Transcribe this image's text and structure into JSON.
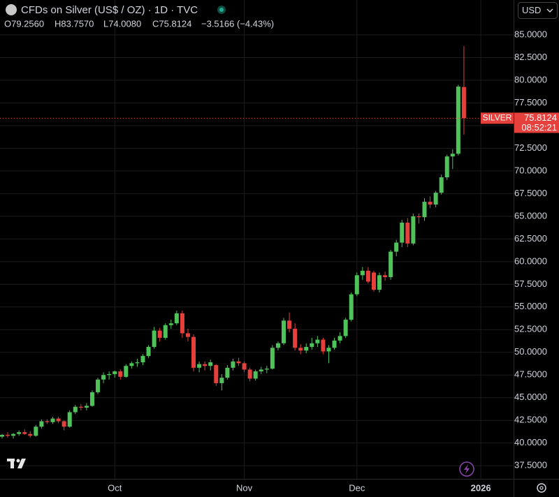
{
  "header": {
    "title": "CFDs on Silver (US$ / OZ) · 1D · TVC",
    "open": "O79.2560",
    "high": "H83.7570",
    "low": "L74.0080",
    "close": "C75.8124",
    "change": "−3.5166 (−4.43%)",
    "currency": "USD"
  },
  "chart_data": {
    "type": "candlestick",
    "up_color": "#4fc25a",
    "down_color": "#e5403b",
    "grid": true,
    "symbol_tag": "SILVER",
    "countdown": "08:52:21",
    "ylim": [
      36.05,
      88.85
    ],
    "yticks": [
      {
        "value": 37.5,
        "label": "37.5000"
      },
      {
        "value": 40,
        "label": "40.0000"
      },
      {
        "value": 42.5,
        "label": "42.5000"
      },
      {
        "value": 45,
        "label": "45.0000"
      },
      {
        "value": 47.5,
        "label": "47.5000"
      },
      {
        "value": 50,
        "label": "50.0000"
      },
      {
        "value": 52.5,
        "label": "52.5000"
      },
      {
        "value": 55,
        "label": "55.0000"
      },
      {
        "value": 57.5,
        "label": "57.5000"
      },
      {
        "value": 60,
        "label": "60.0000"
      },
      {
        "value": 62.5,
        "label": "62.5000"
      },
      {
        "value": 65,
        "label": "65.0000"
      },
      {
        "value": 67.5,
        "label": "67.5000"
      },
      {
        "value": 70,
        "label": "70.0000"
      },
      {
        "value": 72.5,
        "label": "72.5000"
      },
      {
        "value": 75,
        "label": "75.0000"
      },
      {
        "value": 77.5,
        "label": "77.5000"
      },
      {
        "value": 80,
        "label": "80.0000"
      },
      {
        "value": 82.5,
        "label": "82.5000"
      },
      {
        "value": 85,
        "label": "85.0000"
      }
    ],
    "categories": [
      null,
      null,
      null,
      null,
      null,
      null,
      null,
      null,
      null,
      null,
      null,
      null,
      null,
      null,
      null,
      null,
      null,
      null,
      null,
      null,
      "Oct",
      null,
      null,
      null,
      null,
      null,
      null,
      null,
      null,
      null,
      null,
      null,
      null,
      null,
      null,
      null,
      null,
      null,
      null,
      null,
      null,
      null,
      null,
      "Nov",
      null,
      null,
      null,
      null,
      null,
      null,
      null,
      null,
      null,
      null,
      null,
      null,
      null,
      null,
      null,
      null,
      null,
      null,
      null,
      "Dec",
      null,
      null,
      null,
      null,
      null,
      null,
      null,
      null,
      null,
      null,
      null,
      null,
      null,
      null,
      null,
      null,
      null,
      null,
      null,
      null,
      null,
      "2026"
    ],
    "open": [
      40.7,
      40.9,
      40.8,
      41.0,
      41.2,
      41.0,
      40.8,
      41.8,
      42.4,
      42.3,
      42.7,
      42.4,
      41.8,
      43.4,
      44.0,
      43.9,
      44.1,
      45.6,
      47.0,
      47.5,
      47.6,
      47.9,
      47.3,
      48.5,
      48.8,
      48.9,
      49.6,
      50.6,
      52.4,
      51.6,
      53.0,
      53.2,
      54.3,
      52.1,
      51.7,
      48.3,
      48.7,
      48.5,
      48.6,
      46.6,
      47.2,
      48.3,
      49.0,
      48.8,
      48.1,
      47.1,
      47.9,
      48.1,
      48.2,
      50.5,
      51.0,
      53.5,
      52.6,
      50.5,
      50.2,
      50.6,
      51.0,
      51.4,
      50.1,
      50.5,
      51.3,
      51.8,
      53.6,
      56.4,
      58.5,
      59.0,
      58.8,
      56.9,
      58.5,
      58.3,
      61.1,
      62.1,
      64.3,
      62.0,
      65.0,
      64.9,
      66.6,
      66.3,
      67.6,
      69.3,
      71.6,
      71.9,
      79.256,
      null,
      null,
      null
    ],
    "high": [
      41.0,
      41.2,
      41.1,
      41.4,
      41.5,
      41.3,
      42.0,
      42.6,
      42.6,
      42.9,
      42.9,
      42.5,
      43.6,
      44.2,
      44.3,
      44.4,
      45.8,
      47.2,
      47.8,
      47.9,
      48.0,
      48.1,
      48.7,
      49.0,
      49.3,
      49.8,
      50.8,
      52.8,
      52.7,
      53.2,
      53.6,
      54.6,
      54.6,
      52.6,
      52.0,
      49.0,
      49.0,
      49.2,
      48.7,
      47.6,
      48.6,
      49.3,
      49.4,
      49.0,
      48.3,
      48.1,
      48.4,
      48.5,
      50.8,
      51.2,
      53.8,
      54.4,
      53.2,
      50.9,
      51.0,
      51.6,
      51.8,
      51.6,
      50.8,
      51.6,
      52.2,
      53.8,
      56.6,
      58.8,
      59.4,
      59.4,
      59.0,
      58.8,
      58.9,
      61.3,
      62.4,
      64.6,
      64.8,
      65.3,
      65.3,
      67.0,
      67.2,
      67.8,
      69.6,
      71.8,
      72.4,
      79.5,
      83.757,
      null,
      null,
      null
    ],
    "low": [
      40.5,
      40.6,
      40.5,
      40.8,
      40.9,
      40.6,
      40.7,
      41.6,
      42.1,
      42.1,
      42.2,
      41.4,
      41.7,
      43.2,
      43.6,
      43.6,
      44.0,
      45.4,
      46.6,
      47.0,
      47.2,
      47.0,
      47.2,
      48.2,
      48.4,
      48.6,
      49.4,
      50.4,
      51.2,
      51.4,
      52.6,
      53.0,
      51.6,
      51.2,
      47.9,
      47.8,
      48.0,
      48.0,
      46.3,
      45.8,
      47.0,
      48.0,
      48.5,
      47.8,
      46.8,
      46.9,
      47.6,
      47.7,
      48.1,
      50.2,
      50.8,
      52.2,
      50.2,
      49.8,
      49.9,
      50.3,
      50.6,
      49.8,
      48.8,
      50.3,
      51.0,
      51.6,
      53.4,
      56.2,
      58.0,
      57.6,
      56.7,
      56.6,
      57.9,
      58.0,
      60.6,
      61.6,
      61.6,
      61.8,
      64.2,
      64.5,
      65.9,
      66.0,
      67.4,
      69.0,
      70.2,
      71.7,
      74.008,
      null,
      null,
      null
    ],
    "close": [
      40.9,
      40.8,
      41.0,
      41.2,
      41.0,
      40.8,
      41.8,
      42.4,
      42.3,
      42.7,
      42.4,
      41.8,
      43.4,
      44.0,
      43.9,
      44.1,
      45.6,
      47.0,
      47.5,
      47.6,
      47.9,
      47.3,
      48.5,
      48.8,
      48.9,
      49.6,
      50.6,
      52.4,
      51.6,
      53.0,
      53.2,
      54.3,
      52.1,
      51.7,
      48.3,
      48.7,
      48.5,
      48.9,
      46.6,
      47.2,
      48.3,
      49.0,
      48.8,
      48.1,
      47.1,
      47.9,
      48.1,
      48.2,
      50.5,
      51.0,
      53.5,
      52.6,
      50.5,
      50.2,
      50.6,
      51.0,
      51.4,
      50.1,
      50.5,
      51.3,
      51.8,
      53.6,
      56.4,
      58.5,
      59.0,
      57.8,
      56.9,
      58.5,
      58.3,
      61.1,
      62.1,
      64.3,
      62.0,
      65.0,
      64.9,
      66.6,
      66.3,
      67.6,
      69.3,
      71.6,
      71.9,
      79.3,
      75.8124,
      null,
      null,
      null
    ]
  }
}
